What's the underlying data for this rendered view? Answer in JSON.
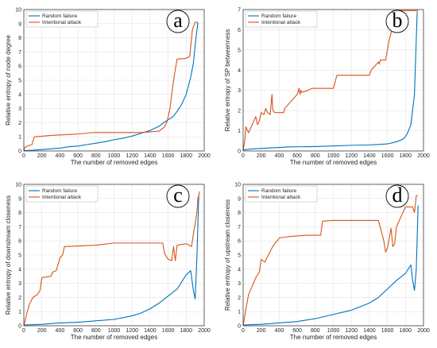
{
  "colors": {
    "random": "#0072BD",
    "attack": "#D95319",
    "grid": "#E3E3E3",
    "axis": "#262626"
  },
  "legend": {
    "random_label": "Random failure",
    "attack_label": "Intentional attack"
  },
  "chart_data": [
    {
      "type": "line",
      "panel": "a",
      "xlabel": "The number of removed edges",
      "ylabel": "Relative entropy of node degree",
      "xlim": [
        0,
        2000
      ],
      "ylim": [
        0,
        10
      ],
      "xticks": [
        0,
        200,
        400,
        600,
        800,
        1000,
        1200,
        1400,
        1600,
        1800,
        2000
      ],
      "yticks": [
        0,
        1,
        2,
        3,
        4,
        5,
        6,
        7,
        8,
        9,
        10
      ],
      "grid": true,
      "legend_position": "top-left",
      "series": [
        {
          "name": "Random failure",
          "x": [
            0,
            100,
            200,
            300,
            400,
            500,
            600,
            700,
            800,
            900,
            1000,
            1100,
            1200,
            1300,
            1400,
            1500,
            1550,
            1600,
            1650,
            1700,
            1750,
            1800,
            1850,
            1880,
            1900,
            1930
          ],
          "y": [
            0.02,
            0.05,
            0.1,
            0.15,
            0.2,
            0.3,
            0.35,
            0.45,
            0.55,
            0.65,
            0.8,
            0.9,
            1.05,
            1.25,
            1.45,
            1.75,
            2.0,
            2.2,
            2.4,
            2.8,
            3.3,
            4.0,
            5.2,
            6.2,
            7.5,
            9.1
          ]
        },
        {
          "name": "Intentional attack",
          "x": [
            0,
            10,
            40,
            90,
            110,
            120,
            300,
            600,
            760,
            1000,
            1300,
            1500,
            1560,
            1590,
            1620,
            1650,
            1670,
            1700,
            1800,
            1840,
            1870,
            1900,
            1930
          ],
          "y": [
            0,
            0.25,
            0.35,
            0.45,
            0.9,
            1.0,
            1.1,
            1.2,
            1.3,
            1.3,
            1.3,
            1.4,
            1.7,
            2.1,
            3.0,
            4.5,
            5.4,
            6.5,
            6.55,
            6.7,
            8.6,
            9.1,
            9.1
          ]
        }
      ]
    },
    {
      "type": "line",
      "panel": "b",
      "xlabel": "The number of removed edges",
      "ylabel": "Relative entropy of SP betweenness",
      "xlim": [
        0,
        2000
      ],
      "ylim": [
        0,
        7
      ],
      "xticks": [
        0,
        200,
        400,
        600,
        800,
        1000,
        1200,
        1400,
        1600,
        1800,
        2000
      ],
      "yticks": [
        0,
        1,
        2,
        3,
        4,
        5,
        6,
        7
      ],
      "grid": true,
      "legend_position": "top-left",
      "series": [
        {
          "name": "Random failure",
          "x": [
            0,
            100,
            300,
            500,
            800,
            1000,
            1200,
            1400,
            1500,
            1600,
            1700,
            1780,
            1820,
            1860,
            1900,
            1930
          ],
          "y": [
            0.05,
            0.1,
            0.15,
            0.2,
            0.22,
            0.25,
            0.28,
            0.3,
            0.32,
            0.35,
            0.45,
            0.6,
            0.85,
            1.3,
            2.8,
            6.9
          ]
        },
        {
          "name": "Intentional attack",
          "x": [
            0,
            20,
            30,
            60,
            100,
            140,
            160,
            180,
            200,
            230,
            250,
            270,
            300,
            310,
            320,
            330,
            350,
            450,
            460,
            480,
            600,
            620,
            630,
            640,
            650,
            720,
            760,
            1000,
            1020,
            1040,
            1400,
            1420,
            1500,
            1510,
            1520,
            1580,
            1600,
            1620,
            1650,
            1700,
            1940
          ],
          "y": [
            0,
            0.6,
            1.2,
            0.9,
            1.3,
            1.7,
            1.3,
            1.5,
            1.9,
            1.8,
            2.1,
            1.9,
            1.8,
            2.3,
            2.8,
            2.0,
            1.9,
            1.9,
            2.1,
            2.2,
            2.8,
            3.1,
            2.8,
            3.0,
            2.9,
            3.0,
            3.1,
            3.1,
            3.4,
            3.75,
            3.75,
            4.0,
            4.4,
            4.3,
            4.5,
            4.5,
            5.0,
            5.5,
            6.0,
            6.95,
            6.95
          ]
        }
      ]
    },
    {
      "type": "line",
      "panel": "c",
      "xlabel": "The number of removed edges",
      "ylabel": "Relative entropy of downstream closeness",
      "xlim": [
        0,
        2000
      ],
      "ylim": [
        0,
        10
      ],
      "xticks": [
        0,
        200,
        400,
        600,
        800,
        1000,
        1200,
        1400,
        1600,
        1800,
        2000
      ],
      "yticks": [
        0,
        1,
        2,
        3,
        4,
        5,
        6,
        7,
        8,
        9,
        10
      ],
      "grid": true,
      "legend_position": "top-left",
      "series": [
        {
          "name": "Random failure",
          "x": [
            0,
            200,
            400,
            600,
            800,
            1000,
            1200,
            1300,
            1400,
            1500,
            1600,
            1700,
            1750,
            1800,
            1850,
            1880,
            1900,
            1920,
            1940
          ],
          "y": [
            0.05,
            0.1,
            0.2,
            0.25,
            0.35,
            0.45,
            0.7,
            0.9,
            1.2,
            1.6,
            2.1,
            2.6,
            3.1,
            3.6,
            3.9,
            2.5,
            1.9,
            5.0,
            9.3
          ]
        },
        {
          "name": "Intentional attack",
          "x": [
            0,
            30,
            60,
            100,
            150,
            180,
            200,
            300,
            320,
            360,
            400,
            430,
            450,
            470,
            800,
            1000,
            1200,
            1400,
            1540,
            1560,
            1600,
            1640,
            1660,
            1680,
            1700,
            1800,
            1860,
            1880,
            1900,
            1920,
            1930,
            1950
          ],
          "y": [
            0,
            0.8,
            1.5,
            2.0,
            2.2,
            2.5,
            3.4,
            3.5,
            3.8,
            3.9,
            4.8,
            5.0,
            5.6,
            5.6,
            5.7,
            5.85,
            5.85,
            5.85,
            5.85,
            5.1,
            4.7,
            4.6,
            5.6,
            4.6,
            5.7,
            5.8,
            5.6,
            6.5,
            7.2,
            8.1,
            9.0,
            9.5
          ]
        }
      ]
    },
    {
      "type": "line",
      "panel": "d",
      "xlabel": "The number of removed edges",
      "ylabel": "Relative entropy of upstream closeness",
      "xlim": [
        0,
        2000
      ],
      "ylim": [
        0,
        10
      ],
      "xticks": [
        0,
        200,
        400,
        600,
        800,
        1000,
        1200,
        1400,
        1600,
        1800,
        2000
      ],
      "yticks": [
        0,
        1,
        2,
        3,
        4,
        5,
        6,
        7,
        8,
        9,
        10
      ],
      "grid": true,
      "legend_position": "top-left",
      "series": [
        {
          "name": "Random failure",
          "x": [
            0,
            200,
            400,
            600,
            800,
            1000,
            1200,
            1400,
            1500,
            1600,
            1700,
            1800,
            1860,
            1880,
            1900,
            1920,
            1940
          ],
          "y": [
            0.05,
            0.1,
            0.2,
            0.3,
            0.5,
            0.8,
            1.1,
            1.6,
            2.0,
            2.6,
            3.2,
            3.7,
            4.3,
            3.2,
            2.5,
            4.0,
            8.5
          ]
        },
        {
          "name": "Intentional attack",
          "x": [
            0,
            20,
            40,
            60,
            100,
            140,
            180,
            200,
            240,
            280,
            320,
            360,
            380,
            400,
            500,
            700,
            860,
            880,
            1000,
            1200,
            1400,
            1500,
            1560,
            1580,
            1600,
            1640,
            1660,
            1680,
            1700,
            1800,
            1880,
            1900,
            1920,
            1940
          ],
          "y": [
            0,
            0.8,
            1.5,
            2.2,
            2.8,
            3.4,
            3.8,
            4.7,
            4.5,
            5.0,
            5.5,
            5.9,
            6.0,
            6.2,
            6.3,
            6.4,
            6.4,
            7.4,
            7.45,
            7.45,
            7.45,
            7.45,
            6.0,
            5.2,
            5.5,
            6.9,
            5.6,
            5.8,
            7.0,
            8.4,
            8.4,
            8.0,
            9.2,
            9.2
          ]
        }
      ]
    }
  ]
}
